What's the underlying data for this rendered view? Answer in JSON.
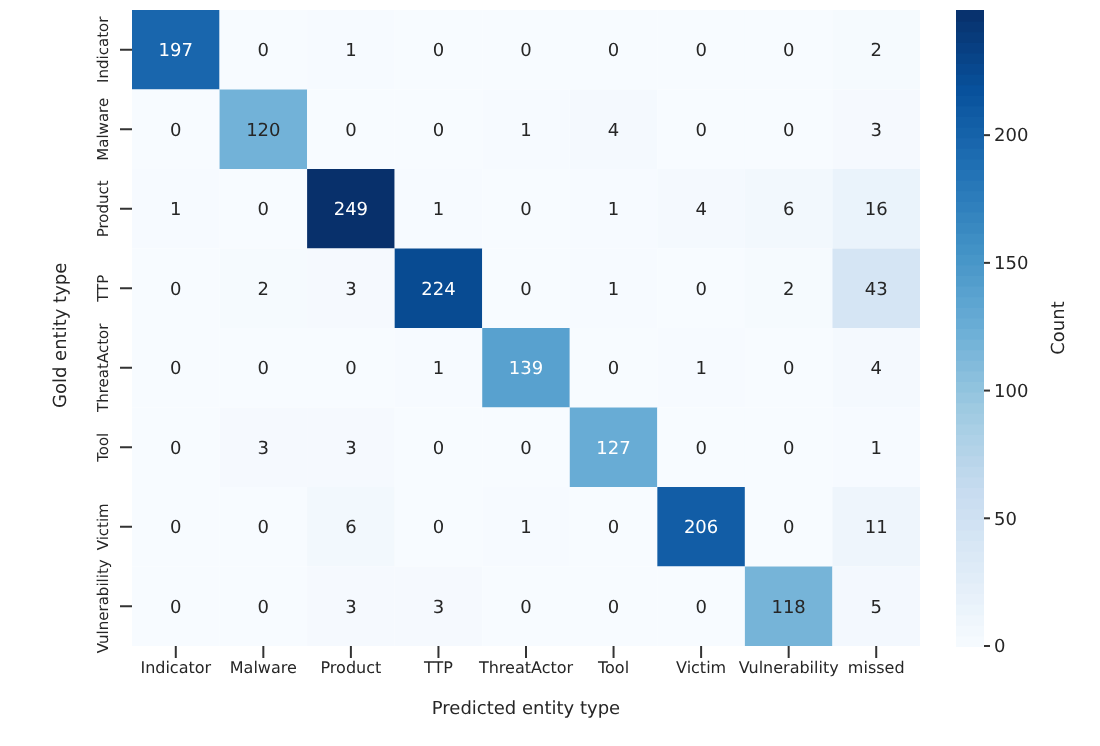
{
  "chart_data": {
    "type": "heatmap",
    "xlabel": "Predicted entity type",
    "ylabel": "Gold entity type",
    "clabel": "Count",
    "categories": [
      "Indicator",
      "Malware",
      "Product",
      "TTP",
      "ThreatActor",
      "Tool",
      "Victim",
      "Vulnerability",
      "missed"
    ],
    "y_categories": [
      "Indicator",
      "Malware",
      "Product",
      "TTP",
      "ThreatActor",
      "Tool",
      "Victim",
      "Vulnerability"
    ],
    "cells": [
      [
        197,
        0,
        1,
        0,
        0,
        0,
        0,
        0,
        2
      ],
      [
        0,
        120,
        0,
        0,
        1,
        4,
        0,
        0,
        3
      ],
      [
        1,
        0,
        249,
        1,
        0,
        1,
        4,
        6,
        16
      ],
      [
        0,
        2,
        3,
        224,
        0,
        1,
        0,
        2,
        43
      ],
      [
        0,
        0,
        0,
        1,
        139,
        0,
        1,
        0,
        4
      ],
      [
        0,
        3,
        3,
        0,
        0,
        127,
        0,
        0,
        1
      ],
      [
        0,
        0,
        6,
        0,
        1,
        0,
        206,
        0,
        11
      ],
      [
        0,
        0,
        3,
        3,
        0,
        0,
        0,
        118,
        5
      ]
    ],
    "clim": [
      0,
      249
    ],
    "cticks": [
      0,
      50,
      100,
      150,
      200
    ],
    "data_labels": true
  }
}
